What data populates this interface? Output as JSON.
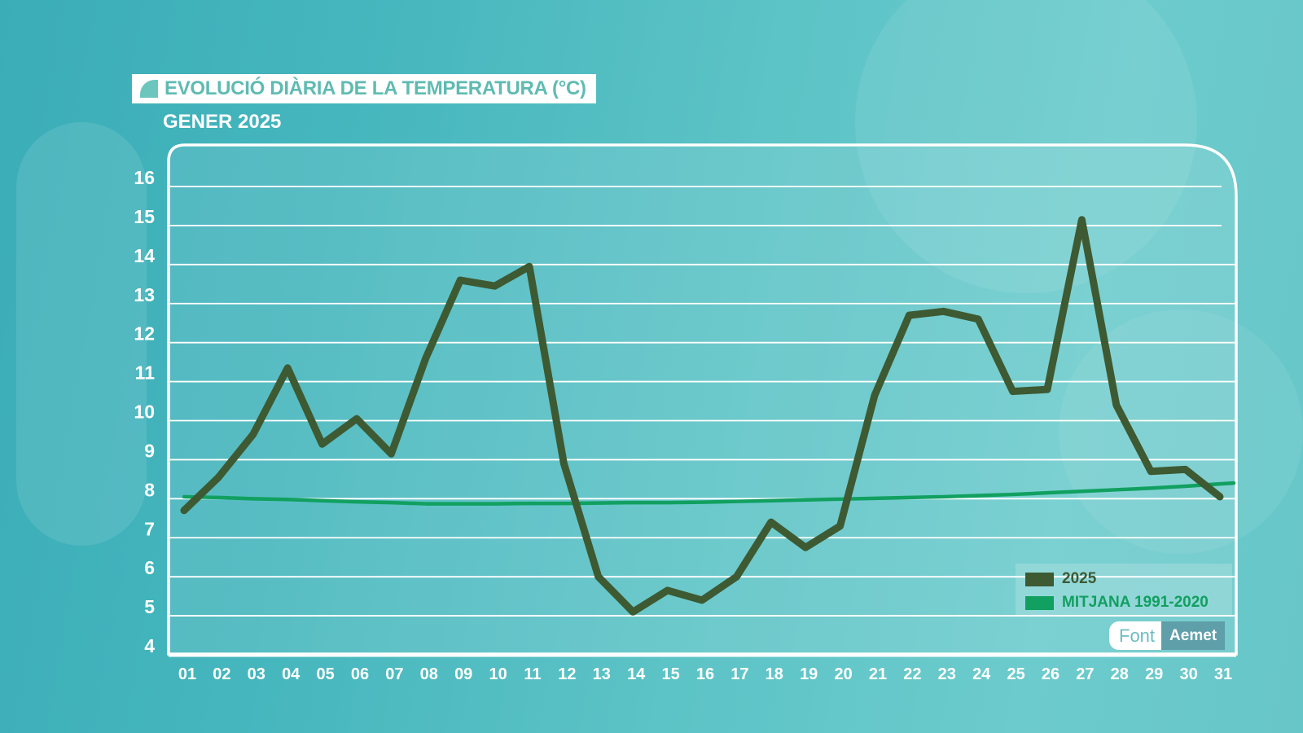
{
  "header": {
    "title": "EVOLUCIÓ DIÀRIA DE LA TEMPERATURA (°C)",
    "subtitle": "GENER 2025"
  },
  "legend": {
    "items": [
      {
        "label": "2025",
        "color": "#3d5a33"
      },
      {
        "label": "MITJANA 1991-2020",
        "color": "#11a060"
      }
    ]
  },
  "source": {
    "label": "Font",
    "name": "Aemet"
  },
  "colors": {
    "series_2025": "#3d5a33",
    "series_avg": "#11a060",
    "grid": "#ffffff",
    "title_text": "#5fbbb2"
  },
  "chart_data": {
    "type": "line",
    "title": "EVOLUCIÓ DIÀRIA DE LA TEMPERATURA (°C)",
    "subtitle": "GENER 2025",
    "xlabel": "",
    "ylabel": "°C",
    "x": [
      "01",
      "02",
      "03",
      "04",
      "05",
      "06",
      "07",
      "08",
      "09",
      "10",
      "11",
      "12",
      "13",
      "14",
      "15",
      "16",
      "17",
      "18",
      "19",
      "20",
      "21",
      "22",
      "23",
      "24",
      "25",
      "26",
      "27",
      "28",
      "29",
      "30",
      "31"
    ],
    "yticks": [
      16,
      15,
      14,
      13,
      12,
      11,
      10,
      9,
      8,
      7,
      6,
      5,
      4
    ],
    "ylim": [
      4,
      16
    ],
    "grid": true,
    "legend_position": "bottom-right",
    "series": [
      {
        "name": "2025",
        "values": [
          7.7,
          8.55,
          9.65,
          11.35,
          9.4,
          10.05,
          9.15,
          11.6,
          13.6,
          13.45,
          13.95,
          8.9,
          6.0,
          5.1,
          5.65,
          5.4,
          6.0,
          7.4,
          6.75,
          7.3,
          10.65,
          12.7,
          12.8,
          12.6,
          10.75,
          10.8,
          15.15,
          10.4,
          8.7,
          8.75,
          8.05
        ]
      },
      {
        "name": "MITJANA 1991-2020",
        "values": [
          8.05,
          8.03,
          8.0,
          7.98,
          7.95,
          7.92,
          7.9,
          7.87,
          7.87,
          7.87,
          7.88,
          7.88,
          7.89,
          7.9,
          7.9,
          7.91,
          7.93,
          7.95,
          7.97,
          7.99,
          8.01,
          8.03,
          8.05,
          8.08,
          8.11,
          8.15,
          8.19,
          8.23,
          8.27,
          8.32,
          8.38
        ]
      }
    ],
    "source": "Font: Aemet"
  }
}
